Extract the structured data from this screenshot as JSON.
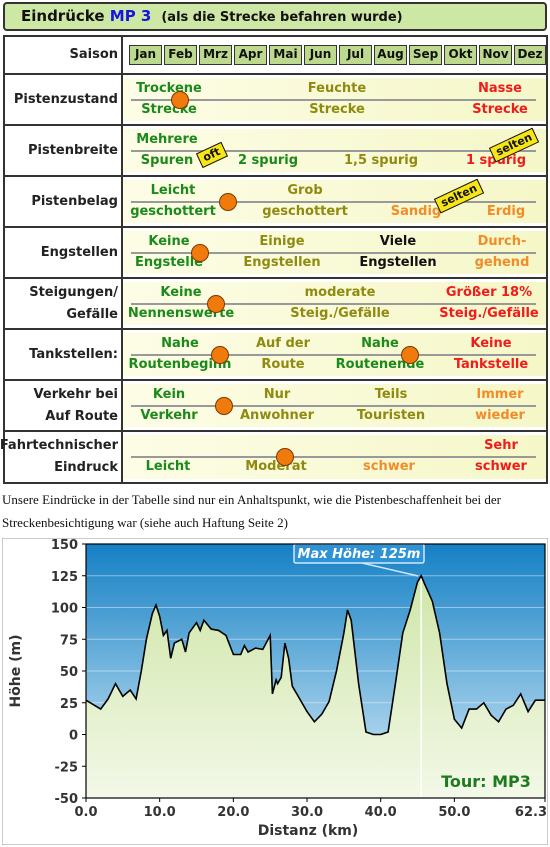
{
  "header": {
    "prefix": "Eindrücke",
    "mp": "MP 3",
    "subtitle": "(als die Strecke befahren wurde)"
  },
  "season": {
    "label": "Saison",
    "months": [
      "Jan",
      "Feb",
      "Mrz",
      "Apr",
      "Mai",
      "Jun",
      "Jul",
      "Aug",
      "Sep",
      "Okt",
      "Nov",
      "Dez"
    ]
  },
  "rows": [
    {
      "label": [
        "Pistenzustand"
      ],
      "texts": [
        [
          "Trockene",
          "Strecke"
        ],
        [
          "Feuchte",
          "Strecke"
        ],
        [
          "Nasse",
          "Strecke"
        ]
      ],
      "marker_levels": [
        0.12
      ],
      "flags": []
    },
    {
      "label": [
        "Pistenbreite"
      ],
      "texts": [
        [
          "Mehrere",
          "Spuren"
        ],
        [
          "",
          "2 spurig"
        ],
        [
          "",
          "1,5 spurig"
        ],
        [
          "",
          "1 spurig"
        ]
      ],
      "marker_levels": [],
      "flags": [
        "oft",
        "selten"
      ]
    },
    {
      "label": [
        "Pistenbelag"
      ],
      "texts": [
        [
          "Leicht",
          "geschottert"
        ],
        [
          "Grob",
          "geschottert"
        ],
        [
          "",
          "Sandig"
        ],
        [
          "",
          "Erdig"
        ]
      ],
      "marker_levels": [
        0.24
      ],
      "flags": [
        "selten"
      ]
    },
    {
      "label": [
        "Engstellen"
      ],
      "texts": [
        [
          "Keine",
          "Engstelle"
        ],
        [
          "Einige",
          "Engstellen"
        ],
        [
          "Viele",
          "Engstellen"
        ],
        [
          "Durch-",
          "gehend"
        ]
      ],
      "marker_levels": [
        0.17
      ],
      "flags": []
    },
    {
      "label": [
        "Steigungen/",
        "Gefälle"
      ],
      "texts": [
        [
          "Keine",
          "Nennenswerte"
        ],
        [
          "moderate",
          "Steig./Gefälle"
        ],
        [
          "Größer 18%",
          "Steig./Gefälle"
        ]
      ],
      "marker_levels": [
        0.21
      ],
      "flags": []
    },
    {
      "label": [
        "Tankstellen:"
      ],
      "texts": [
        [
          "Nahe",
          "Routenbeginn"
        ],
        [
          "Auf der",
          "Route"
        ],
        [
          "Nahe",
          "Routenende"
        ],
        [
          "Keine",
          "Tankstelle"
        ]
      ],
      "marker_levels": [
        0.22,
        0.69
      ],
      "flags": []
    },
    {
      "label": [
        "Verkehr bei",
        "Auf Route"
      ],
      "texts": [
        [
          "Kein",
          "Verkehr"
        ],
        [
          "Nur",
          "Anwohner"
        ],
        [
          "Teils",
          "Touristen"
        ],
        [
          "Immer",
          "wieder"
        ]
      ],
      "marker_levels": [
        0.23
      ],
      "flags": []
    },
    {
      "label": [
        "Fahrtechnischer",
        "Eindruck"
      ],
      "texts": [
        [
          "",
          "Leicht"
        ],
        [
          "",
          "Moderat"
        ],
        [
          "",
          "schwer"
        ],
        [
          "Sehr",
          "schwer"
        ]
      ],
      "marker_levels": [
        0.38
      ],
      "flags": []
    }
  ],
  "caption": "Unsere Eindrücke in der Tabelle sind nur ein Anhaltspunkt, wie die Pistenbeschaffenheit bei der Streckenbesichtigung war (siehe auch Haftung Seite 2)",
  "chart_data": {
    "type": "area",
    "xlabel": "Distanz  (km)",
    "ylabel": "Höhe  (m)",
    "xlim": [
      0,
      62.3
    ],
    "ylim": [
      -50,
      150
    ],
    "xticks": [
      "0.0",
      "10.0",
      "20.0",
      "30.0",
      "40.0",
      "50.0",
      "62.3"
    ],
    "yticks": [
      -50,
      -25,
      0,
      25,
      50,
      75,
      100,
      125,
      150
    ],
    "annotation": "Max Höhe: 125m",
    "max_point": [
      45.5,
      125
    ],
    "tour_label": "Tour: MP3",
    "colors": {
      "sky_top": "#1580c4",
      "sky_bottom": "#d6ecf8",
      "fill_top": "#cfe6a8",
      "fill_bottom": "#f3f8e8",
      "line": "#000000"
    },
    "x": [
      0,
      2,
      3,
      4,
      5,
      6,
      6.8,
      7.5,
      8.2,
      9,
      9.5,
      10,
      10.5,
      11,
      11.5,
      12,
      13,
      13.5,
      14,
      15,
      15.5,
      16,
      17,
      18,
      19,
      20,
      21,
      21.5,
      22,
      23,
      24,
      25,
      25.3,
      25.8,
      26,
      26.5,
      27,
      27.5,
      28,
      29,
      30,
      31,
      32,
      33,
      34,
      35,
      35.5,
      36,
      37,
      38,
      39,
      40,
      41,
      42,
      43,
      44,
      45,
      45.5,
      46,
      47,
      48,
      49,
      50,
      51,
      52,
      53,
      54,
      55,
      56,
      57,
      58,
      59,
      60,
      61,
      62.3
    ],
    "y": [
      27,
      20,
      28,
      40,
      30,
      35,
      28,
      50,
      75,
      95,
      102,
      93,
      78,
      82,
      60,
      72,
      75,
      65,
      80,
      88,
      82,
      90,
      83,
      82,
      78,
      63,
      63,
      70,
      65,
      68,
      67,
      78,
      32,
      43,
      40,
      45,
      72,
      60,
      38,
      28,
      18,
      10,
      16,
      26,
      50,
      80,
      98,
      90,
      40,
      2,
      0,
      0,
      2,
      40,
      80,
      98,
      120,
      125,
      118,
      105,
      80,
      40,
      12,
      5,
      20,
      20,
      25,
      15,
      10,
      20,
      23,
      32,
      18,
      27,
      27
    ]
  }
}
